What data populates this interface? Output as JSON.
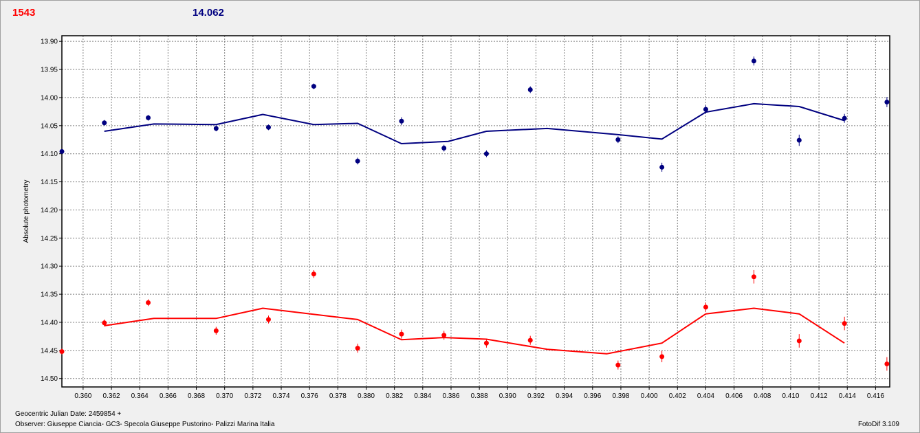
{
  "header": {
    "left_value": "1543",
    "right_value": "14.062",
    "left_color": "#ff0000",
    "right_color": "#000080"
  },
  "footer": {
    "date": "Geocentric Julian Date: 2459854 +",
    "observer": "Observer: Giuseppe Ciancia- GC3- Specola Giuseppe Pustorino- Palizzi Marina Italia",
    "software": "FotoDif 3.109"
  },
  "chart_data": {
    "type": "scatter",
    "ylabel": "Absolute photometry",
    "xlabel": "",
    "xlim": [
      0.3585,
      0.417
    ],
    "ylim": [
      13.89,
      14.515
    ],
    "y_inverted": true,
    "grid": true,
    "x_ticks": [
      0.36,
      0.362,
      0.364,
      0.366,
      0.368,
      0.37,
      0.372,
      0.374,
      0.376,
      0.378,
      0.38,
      0.382,
      0.384,
      0.386,
      0.388,
      0.39,
      0.392,
      0.394,
      0.396,
      0.398,
      0.4,
      0.402,
      0.404,
      0.406,
      0.408,
      0.41,
      0.412,
      0.414,
      0.416
    ],
    "x_tick_labels": [
      "0.360",
      "0.362",
      "0.364",
      "0.366",
      "0.368",
      "0.370",
      "0.372",
      "0.374",
      "0.376",
      "0.378",
      "0.380",
      "0.382",
      "0.384",
      "0.386",
      "0.388",
      "0.390",
      "0.392",
      "0.394",
      "0.396",
      "0.398",
      "0.400",
      "0.402",
      "0.404",
      "0.406",
      "0.408",
      "0.410",
      "0.412",
      "0.414",
      "0.416"
    ],
    "y_ticks": [
      13.9,
      13.95,
      14.0,
      14.05,
      14.1,
      14.15,
      14.2,
      14.25,
      14.3,
      14.35,
      14.4,
      14.45,
      14.5
    ],
    "y_tick_labels": [
      "13.90",
      "13.95",
      "14.00",
      "14.05",
      "14.10",
      "14.15",
      "14.20",
      "14.25",
      "14.30",
      "14.35",
      "14.40",
      "14.45",
      "14.50"
    ],
    "series": [
      {
        "color": "#000080",
        "points": [
          {
            "x": 0.3585,
            "y": 14.096
          },
          {
            "x": 0.3615,
            "y": 14.045
          },
          {
            "x": 0.3646,
            "y": 14.036
          },
          {
            "x": 0.3694,
            "y": 14.055
          },
          {
            "x": 0.3731,
            "y": 14.053
          },
          {
            "x": 0.3763,
            "y": 13.98
          },
          {
            "x": 0.3794,
            "y": 14.113
          },
          {
            "x": 0.3825,
            "y": 14.042
          },
          {
            "x": 0.3855,
            "y": 14.09
          },
          {
            "x": 0.3885,
            "y": 14.1
          },
          {
            "x": 0.3916,
            "y": 13.986
          },
          {
            "x": 0.3978,
            "y": 14.075
          },
          {
            "x": 0.4009,
            "y": 14.124
          },
          {
            "x": 0.404,
            "y": 14.021
          },
          {
            "x": 0.4074,
            "y": 13.935
          },
          {
            "x": 0.4106,
            "y": 14.076
          },
          {
            "x": 0.4138,
            "y": 14.037
          },
          {
            "x": 0.4168,
            "y": 14.008
          }
        ],
        "error": [
          0.004,
          0.005,
          0.005,
          0.005,
          0.005,
          0.005,
          0.006,
          0.007,
          0.006,
          0.006,
          0.006,
          0.006,
          0.008,
          0.007,
          0.008,
          0.01,
          0.008,
          0.009
        ],
        "smooth": [
          {
            "x": 0.3615,
            "y": 14.06
          },
          {
            "x": 0.365,
            "y": 14.047
          },
          {
            "x": 0.3694,
            "y": 14.048
          },
          {
            "x": 0.3727,
            "y": 14.03
          },
          {
            "x": 0.3763,
            "y": 14.048
          },
          {
            "x": 0.3794,
            "y": 14.046
          },
          {
            "x": 0.3825,
            "y": 14.082
          },
          {
            "x": 0.3858,
            "y": 14.078
          },
          {
            "x": 0.3885,
            "y": 14.06
          },
          {
            "x": 0.3928,
            "y": 14.055
          },
          {
            "x": 0.3978,
            "y": 14.066
          },
          {
            "x": 0.4009,
            "y": 14.074
          },
          {
            "x": 0.404,
            "y": 14.026
          },
          {
            "x": 0.4074,
            "y": 14.011
          },
          {
            "x": 0.4106,
            "y": 14.016
          },
          {
            "x": 0.4138,
            "y": 14.041
          }
        ]
      },
      {
        "color": "#ff0000",
        "points": [
          {
            "x": 0.3585,
            "y": 14.452
          },
          {
            "x": 0.3615,
            "y": 14.401
          },
          {
            "x": 0.3646,
            "y": 14.365
          },
          {
            "x": 0.3694,
            "y": 14.415
          },
          {
            "x": 0.3731,
            "y": 14.395
          },
          {
            "x": 0.3763,
            "y": 14.314
          },
          {
            "x": 0.3794,
            "y": 14.446
          },
          {
            "x": 0.3825,
            "y": 14.421
          },
          {
            "x": 0.3855,
            "y": 14.423
          },
          {
            "x": 0.3885,
            "y": 14.437
          },
          {
            "x": 0.3916,
            "y": 14.432
          },
          {
            "x": 0.3978,
            "y": 14.476
          },
          {
            "x": 0.4009,
            "y": 14.461
          },
          {
            "x": 0.404,
            "y": 14.373
          },
          {
            "x": 0.4074,
            "y": 14.319
          },
          {
            "x": 0.4106,
            "y": 14.433
          },
          {
            "x": 0.4138,
            "y": 14.402
          },
          {
            "x": 0.4168,
            "y": 14.474
          }
        ],
        "error": [
          0.005,
          0.006,
          0.006,
          0.007,
          0.007,
          0.007,
          0.008,
          0.008,
          0.008,
          0.008,
          0.008,
          0.008,
          0.01,
          0.008,
          0.012,
          0.012,
          0.012,
          0.012
        ],
        "smooth": [
          {
            "x": 0.3615,
            "y": 14.406
          },
          {
            "x": 0.365,
            "y": 14.393
          },
          {
            "x": 0.3694,
            "y": 14.393
          },
          {
            "x": 0.3727,
            "y": 14.375
          },
          {
            "x": 0.3794,
            "y": 14.395
          },
          {
            "x": 0.3825,
            "y": 14.431
          },
          {
            "x": 0.3855,
            "y": 14.427
          },
          {
            "x": 0.3885,
            "y": 14.43
          },
          {
            "x": 0.3928,
            "y": 14.448
          },
          {
            "x": 0.397,
            "y": 14.456
          },
          {
            "x": 0.4009,
            "y": 14.437
          },
          {
            "x": 0.404,
            "y": 14.385
          },
          {
            "x": 0.4074,
            "y": 14.375
          },
          {
            "x": 0.4106,
            "y": 14.385
          },
          {
            "x": 0.4138,
            "y": 14.437
          }
        ]
      }
    ]
  }
}
